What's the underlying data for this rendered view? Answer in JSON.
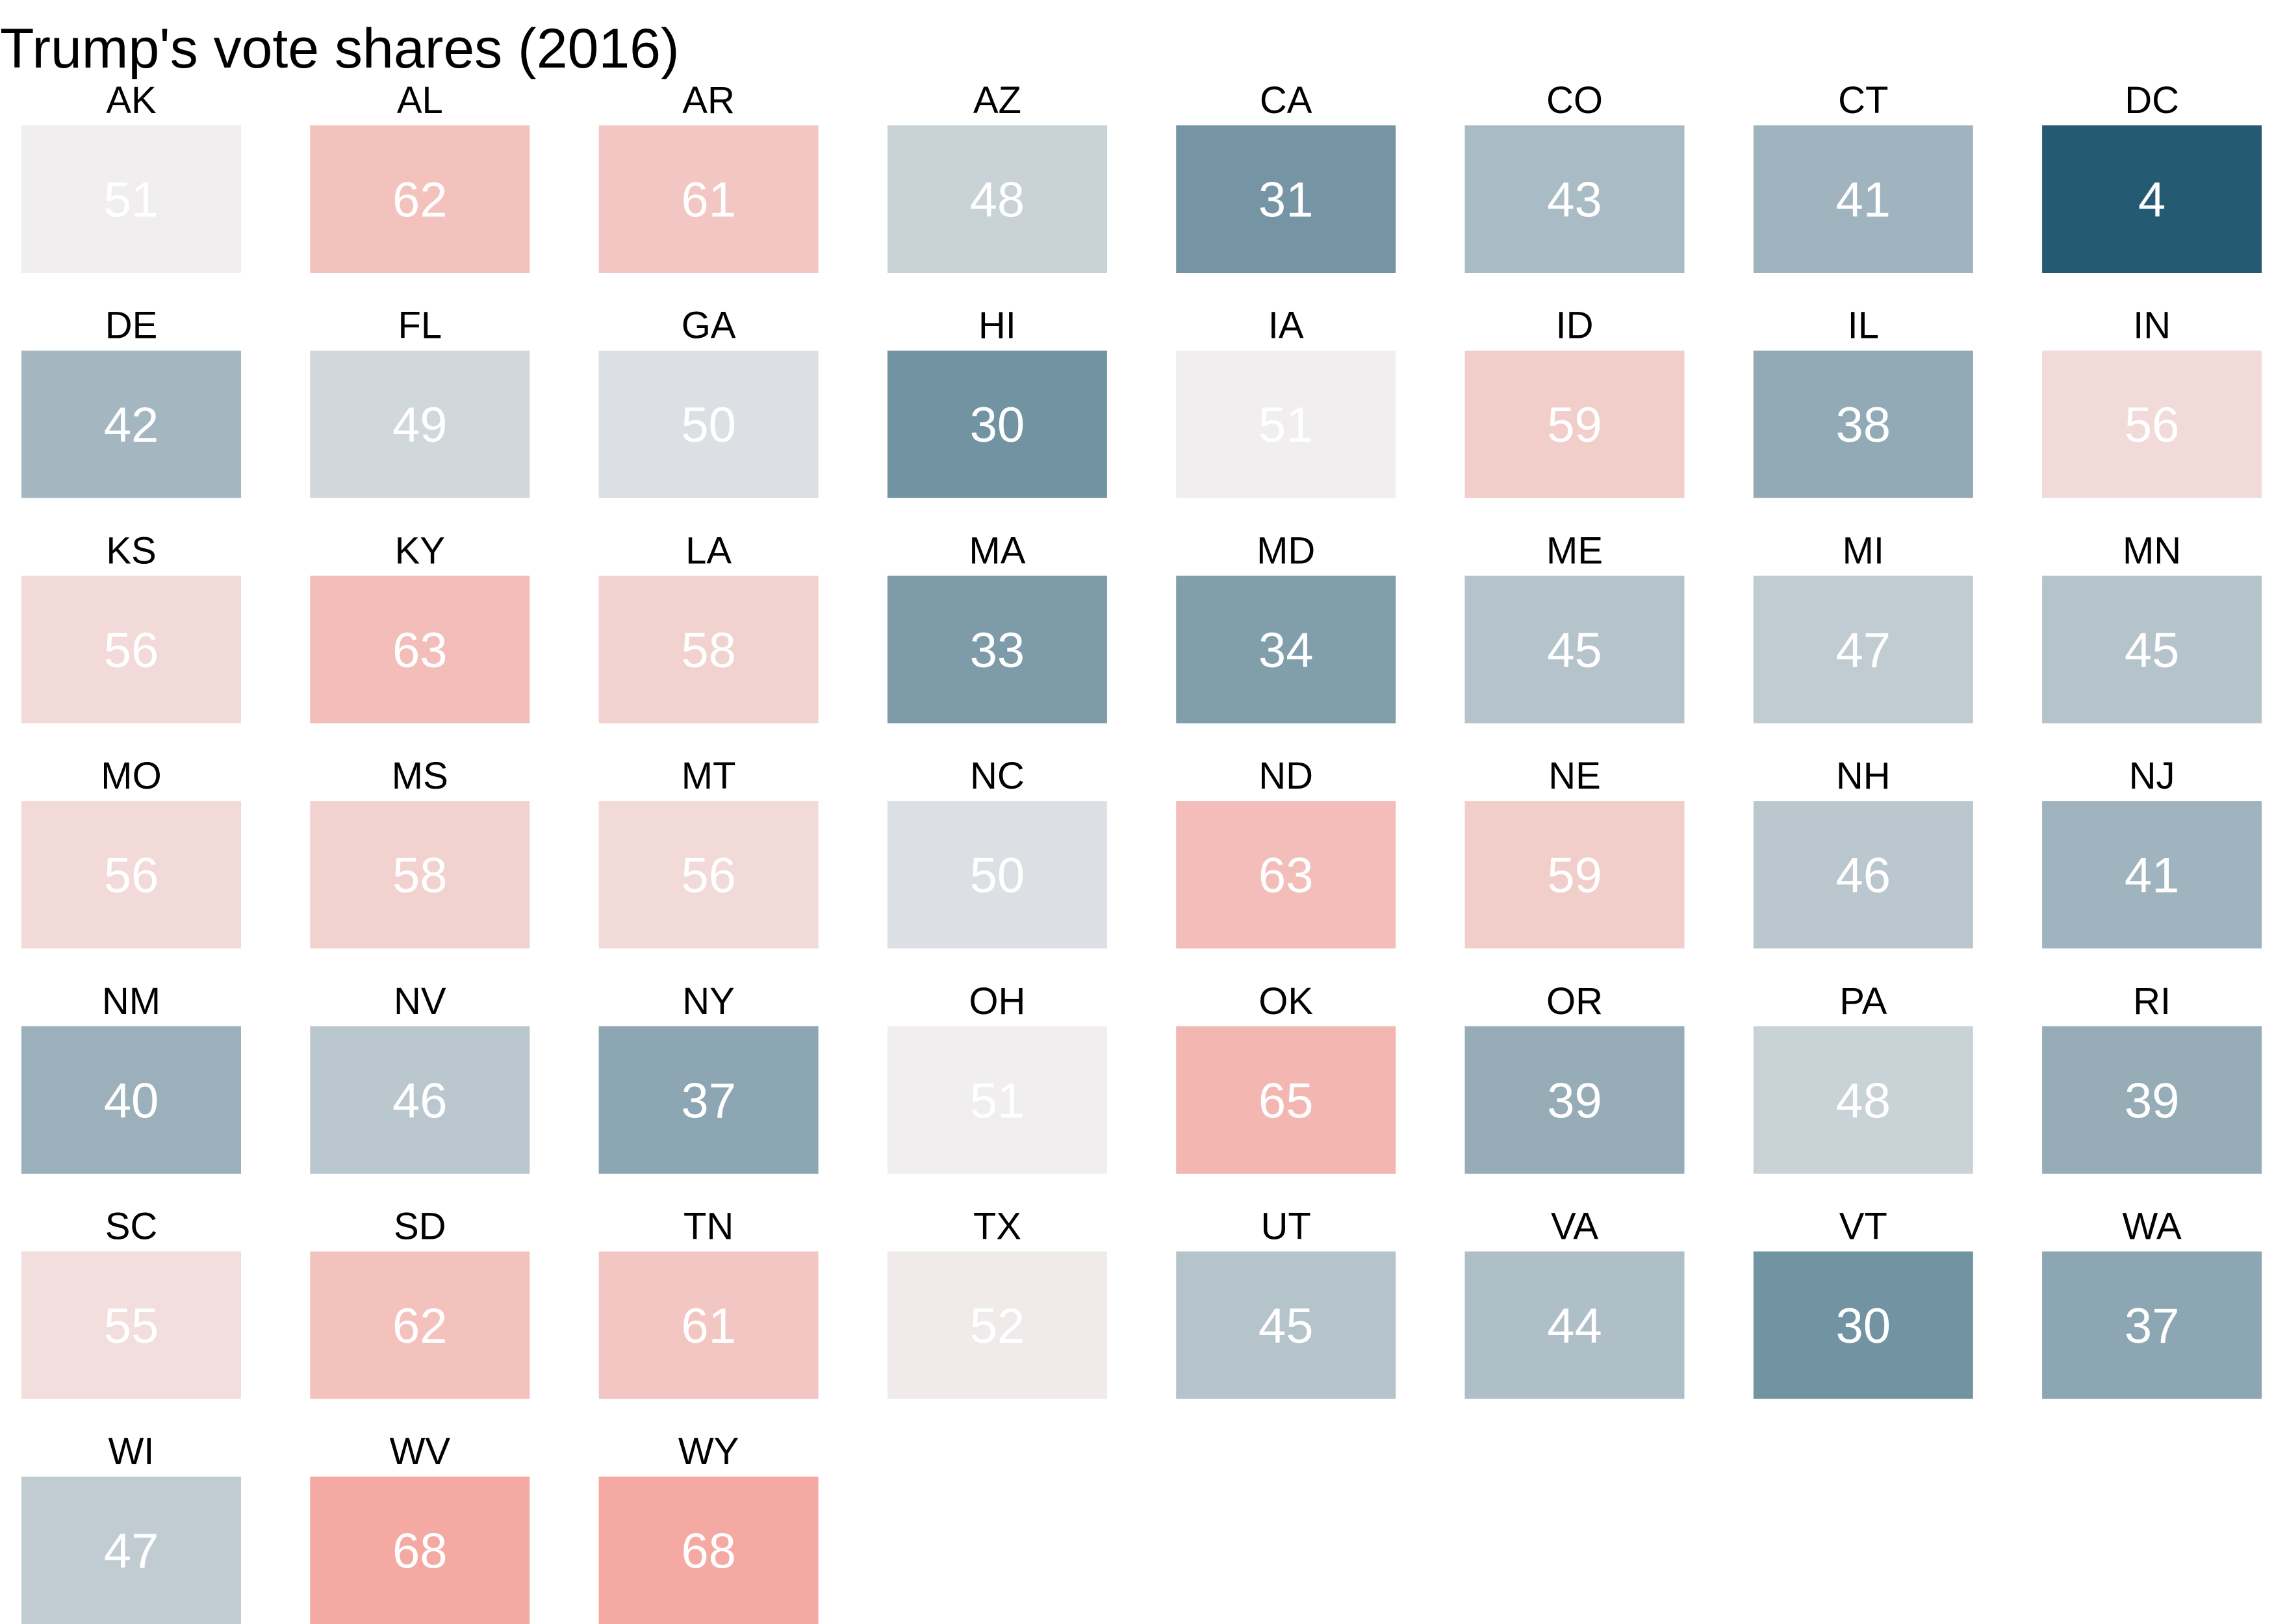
{
  "chart_data": {
    "type": "heatmap",
    "title": "Trump's vote shares (2016)",
    "color_scale": {
      "low": "#245a72",
      "mid": "#f0eeef",
      "high": "#f4aaa2",
      "low_value": 4,
      "mid_value": 51,
      "high_value": 68
    },
    "cells": [
      {
        "state": "AK",
        "value": 51
      },
      {
        "state": "AL",
        "value": 62
      },
      {
        "state": "AR",
        "value": 61
      },
      {
        "state": "AZ",
        "value": 48
      },
      {
        "state": "CA",
        "value": 31
      },
      {
        "state": "CO",
        "value": 43
      },
      {
        "state": "CT",
        "value": 41
      },
      {
        "state": "DC",
        "value": 4
      },
      {
        "state": "DE",
        "value": 42
      },
      {
        "state": "FL",
        "value": 49
      },
      {
        "state": "GA",
        "value": 50
      },
      {
        "state": "HI",
        "value": 30
      },
      {
        "state": "IA",
        "value": 51
      },
      {
        "state": "ID",
        "value": 59
      },
      {
        "state": "IL",
        "value": 38
      },
      {
        "state": "IN",
        "value": 56
      },
      {
        "state": "KS",
        "value": 56
      },
      {
        "state": "KY",
        "value": 63
      },
      {
        "state": "LA",
        "value": 58
      },
      {
        "state": "MA",
        "value": 33
      },
      {
        "state": "MD",
        "value": 34
      },
      {
        "state": "ME",
        "value": 45
      },
      {
        "state": "MI",
        "value": 47
      },
      {
        "state": "MN",
        "value": 45
      },
      {
        "state": "MO",
        "value": 56
      },
      {
        "state": "MS",
        "value": 58
      },
      {
        "state": "MT",
        "value": 56
      },
      {
        "state": "NC",
        "value": 50
      },
      {
        "state": "ND",
        "value": 63
      },
      {
        "state": "NE",
        "value": 59
      },
      {
        "state": "NH",
        "value": 46
      },
      {
        "state": "NJ",
        "value": 41
      },
      {
        "state": "NM",
        "value": 40
      },
      {
        "state": "NV",
        "value": 46
      },
      {
        "state": "NY",
        "value": 37
      },
      {
        "state": "OH",
        "value": 51
      },
      {
        "state": "OK",
        "value": 65
      },
      {
        "state": "OR",
        "value": 39
      },
      {
        "state": "PA",
        "value": 48
      },
      {
        "state": "RI",
        "value": 39
      },
      {
        "state": "SC",
        "value": 55
      },
      {
        "state": "SD",
        "value": 62
      },
      {
        "state": "TN",
        "value": 61
      },
      {
        "state": "TX",
        "value": 52
      },
      {
        "state": "UT",
        "value": 45
      },
      {
        "state": "VA",
        "value": 44
      },
      {
        "state": "VT",
        "value": 30
      },
      {
        "state": "WA",
        "value": 37
      },
      {
        "state": "WI",
        "value": 47
      },
      {
        "state": "WV",
        "value": 68
      },
      {
        "state": "WY",
        "value": 68
      }
    ]
  }
}
